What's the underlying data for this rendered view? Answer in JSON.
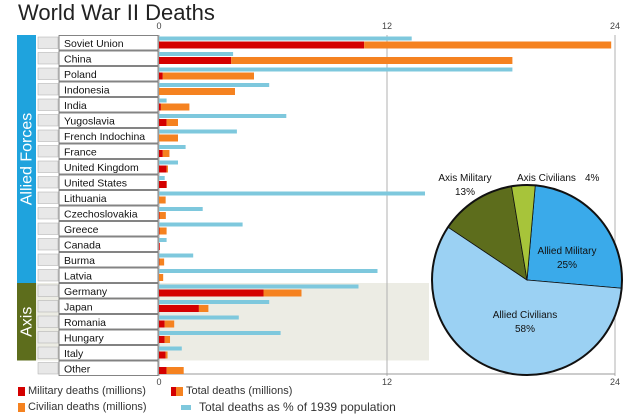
{
  "chart_data": {
    "type": "bar",
    "title": "World War II Deaths",
    "x_axis": {
      "range": [
        0,
        24
      ],
      "ticks": [
        0,
        12,
        24
      ]
    },
    "groups": [
      {
        "name": "Allied Forces",
        "color": "#1fa3dd"
      },
      {
        "name": "Axis",
        "color": "#5d6d1c"
      }
    ],
    "countries": [
      {
        "name": "Soviet Union",
        "group": "Allied Forces",
        "military": 10.8,
        "civilian": 13.0,
        "pct_1939_population": 13.3
      },
      {
        "name": "China",
        "group": "Allied Forces",
        "military": 3.8,
        "civilian": 14.8,
        "pct_1939_population": 3.9
      },
      {
        "name": "Poland",
        "group": "Allied Forces",
        "military": 0.2,
        "civilian": 4.8,
        "pct_1939_population": 18.6
      },
      {
        "name": "Indonesia",
        "group": "Allied Forces",
        "military": 0.0,
        "civilian": 4.0,
        "pct_1939_population": 5.8
      },
      {
        "name": "India",
        "group": "Allied Forces",
        "military": 0.1,
        "civilian": 1.5,
        "pct_1939_population": 0.4
      },
      {
        "name": "Yugoslavia",
        "group": "Allied Forces",
        "military": 0.4,
        "civilian": 0.6,
        "pct_1939_population": 6.7
      },
      {
        "name": "French Indochina",
        "group": "Allied Forces",
        "military": 0.0,
        "civilian": 1.0,
        "pct_1939_population": 4.1
      },
      {
        "name": "France",
        "group": "Allied Forces",
        "military": 0.2,
        "civilian": 0.35,
        "pct_1939_population": 1.4
      },
      {
        "name": "United Kingdom",
        "group": "Allied Forces",
        "military": 0.4,
        "civilian": 0.07,
        "pct_1939_population": 1.0
      },
      {
        "name": "United States",
        "group": "Allied Forces",
        "military": 0.4,
        "civilian": 0.01,
        "pct_1939_population": 0.3
      },
      {
        "name": "Lithuania",
        "group": "Allied Forces",
        "military": 0.0,
        "civilian": 0.35,
        "pct_1939_population": 14.0
      },
      {
        "name": "Czechoslovakia",
        "group": "Allied Forces",
        "military": 0.03,
        "civilian": 0.33,
        "pct_1939_population": 2.3
      },
      {
        "name": "Greece",
        "group": "Allied Forces",
        "military": 0.03,
        "civilian": 0.37,
        "pct_1939_population": 4.4
      },
      {
        "name": "Canada",
        "group": "Allied Forces",
        "military": 0.04,
        "civilian": 0.0,
        "pct_1939_population": 0.4
      },
      {
        "name": "Burma",
        "group": "Allied Forces",
        "military": 0.02,
        "civilian": 0.25,
        "pct_1939_population": 1.8
      },
      {
        "name": "Latvia",
        "group": "Allied Forces",
        "military": 0.0,
        "civilian": 0.22,
        "pct_1939_population": 11.5
      },
      {
        "name": "Germany",
        "group": "Axis",
        "military": 5.5,
        "civilian": 2.0,
        "pct_1939_population": 10.5
      },
      {
        "name": "Japan",
        "group": "Axis",
        "military": 2.1,
        "civilian": 0.5,
        "pct_1939_population": 5.8
      },
      {
        "name": "Romania",
        "group": "Axis",
        "military": 0.3,
        "civilian": 0.5,
        "pct_1939_population": 4.2
      },
      {
        "name": "Hungary",
        "group": "Axis",
        "military": 0.3,
        "civilian": 0.28,
        "pct_1939_population": 6.4
      },
      {
        "name": "Italy",
        "group": "Axis",
        "military": 0.35,
        "civilian": 0.1,
        "pct_1939_population": 1.2
      },
      {
        "name": "Other",
        "group": "",
        "military": 0.4,
        "civilian": 0.9,
        "pct_1939_population": 0.0
      }
    ],
    "pie": {
      "type": "pie",
      "slices": [
        {
          "label": "Allied Military",
          "pct": "25%",
          "value": 25,
          "color": "#3aaaea"
        },
        {
          "label": "Allied Civilians",
          "pct": "58%",
          "value": 58,
          "color": "#9bd1f3"
        },
        {
          "label": "Axis Military",
          "pct": "13%",
          "value": 13,
          "color": "#5d6d1c"
        },
        {
          "label": "Axis Civilians",
          "pct": "4%",
          "value": 4,
          "color": "#a7c43a"
        }
      ]
    },
    "legend": [
      {
        "label": "Military deaths (millions)",
        "color": "#d40000"
      },
      {
        "label": "Total deaths (millions)",
        "color": "#f58220"
      },
      {
        "label": "Civilian deaths (millions)",
        "color": "#f58220"
      },
      {
        "label": "Total deaths as % of 1939 population",
        "color": "#7ec8dd"
      }
    ]
  }
}
